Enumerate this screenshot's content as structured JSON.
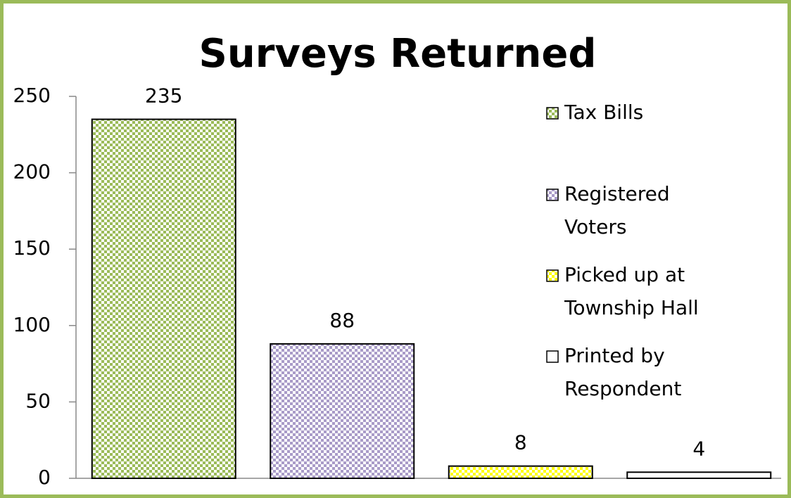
{
  "chart_data": {
    "type": "bar",
    "title": "Surveys Returned",
    "series": [
      {
        "name": "Tax Bills",
        "color": "#9bbb59",
        "values": [
          235
        ]
      },
      {
        "name": "Registered Voters",
        "color": "#a99bc8",
        "values": [
          88
        ]
      },
      {
        "name": "Picked up at Township Hall",
        "color": "#ffff00",
        "values": [
          8
        ]
      },
      {
        "name": "Printed by Respondent",
        "color": "#ffffff",
        "values": [
          4
        ]
      }
    ],
    "ylim": [
      0,
      250
    ],
    "yticks": [
      0,
      50,
      100,
      150,
      200,
      250
    ],
    "grid": false,
    "legend": "right"
  }
}
